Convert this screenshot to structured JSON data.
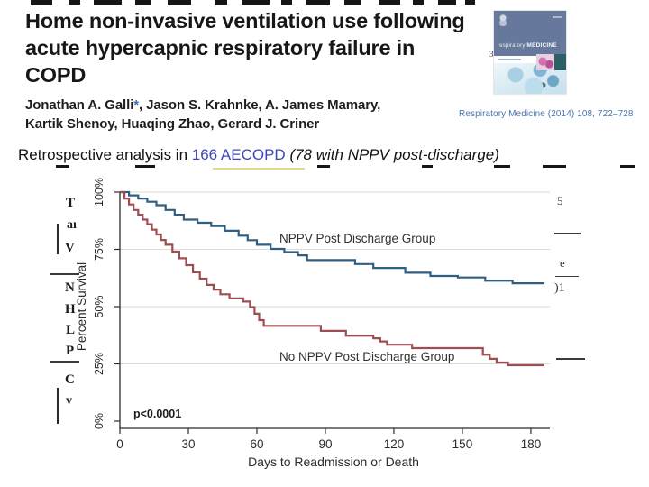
{
  "header": {
    "title_lines": [
      "Home non-invasive ventilation use following",
      "acute hypercapnic respiratory failure in",
      "COPD"
    ],
    "authors": {
      "line1_name": "Jonathan A. Galli",
      "asterisk": "*",
      "line1_rest": ", Jason S. Krahnke, A. James Mamary,",
      "line2": "Kartik Shenoy, Huaqing Zhao, Gerard J. Criner"
    },
    "citation": "Respiratory Medicine (2014) 108, 722–728"
  },
  "cover": {
    "title_small": "respiratory",
    "title_caps": "MEDICINE"
  },
  "summary": {
    "prefix": "Retrospective analysis in ",
    "count_highlight": "166 AECOPD",
    "detail_italic": " (78 with NPPV post-discharge)"
  },
  "artifacts": {
    "left_column_letters": [
      "T",
      "aı",
      "V",
      "N",
      "H",
      "L",
      "P",
      "C",
      "v"
    ],
    "right_column_top": "5",
    "right_column_mid": "e",
    "right_column_low": ")1",
    "cover_side_digit": "3"
  },
  "chart_data": {
    "type": "line",
    "style": "kaplan-meier-step",
    "title": "",
    "xlabel": "Days to Readmission or Death",
    "ylabel": "Percent Survival",
    "x_ticks": [
      0,
      30,
      60,
      90,
      120,
      150,
      180
    ],
    "y_ticks": [
      {
        "value": 0,
        "label": "0%"
      },
      {
        "value": 25,
        "label": "25%"
      },
      {
        "value": 50,
        "label": "50%"
      },
      {
        "value": 75,
        "label": "75%"
      },
      {
        "value": 100,
        "label": "100%"
      }
    ],
    "xlim": [
      0,
      186
    ],
    "ylim": [
      0,
      100
    ],
    "grid": "horizontal-only",
    "annotation": {
      "text": "p<0.0001"
    },
    "series": [
      {
        "name": "NPPV Post Discharge Group",
        "color": "#2f5f82",
        "points": [
          [
            0,
            100
          ],
          [
            4,
            98.6
          ],
          [
            8,
            97.2
          ],
          [
            12,
            95.8
          ],
          [
            16,
            94.3
          ],
          [
            20,
            92.2
          ],
          [
            24,
            90.1
          ],
          [
            28,
            88.0
          ],
          [
            34,
            86.6
          ],
          [
            40,
            85.2
          ],
          [
            46,
            83.1
          ],
          [
            52,
            81.0
          ],
          [
            56,
            79.0
          ],
          [
            60,
            77.0
          ],
          [
            66,
            75.2
          ],
          [
            72,
            73.8
          ],
          [
            78,
            72.4
          ],
          [
            82,
            70.3
          ],
          [
            103,
            68.6
          ],
          [
            111,
            66.9
          ],
          [
            125,
            64.8
          ],
          [
            136,
            63.4
          ],
          [
            148,
            62.7
          ],
          [
            160,
            61.3
          ],
          [
            172,
            60.2
          ],
          [
            186,
            60.2
          ]
        ]
      },
      {
        "name": "No NPPV Post Discharge Group",
        "color": "#9e4d53",
        "points": [
          [
            0,
            100
          ],
          [
            2,
            97.2
          ],
          [
            4,
            94.6
          ],
          [
            6,
            92.2
          ],
          [
            8,
            90.1
          ],
          [
            10,
            88.0
          ],
          [
            12,
            86.0
          ],
          [
            14,
            83.6
          ],
          [
            16,
            81.5
          ],
          [
            18,
            79.1
          ],
          [
            20,
            77.0
          ],
          [
            23,
            74.0
          ],
          [
            26,
            71.1
          ],
          [
            29,
            68.1
          ],
          [
            32,
            65.0
          ],
          [
            35,
            62.2
          ],
          [
            38,
            59.5
          ],
          [
            41,
            57.4
          ],
          [
            44,
            55.4
          ],
          [
            48,
            53.6
          ],
          [
            54,
            52.2
          ],
          [
            57,
            49.8
          ],
          [
            59,
            46.9
          ],
          [
            61,
            44.1
          ],
          [
            63,
            41.6
          ],
          [
            88,
            39.4
          ],
          [
            99,
            37.3
          ],
          [
            111,
            36.2
          ],
          [
            114,
            34.8
          ],
          [
            117,
            33.4
          ],
          [
            128,
            31.9
          ],
          [
            159,
            29.0
          ],
          [
            162,
            27.2
          ],
          [
            165,
            25.6
          ],
          [
            170,
            24.4
          ],
          [
            186,
            24.4
          ]
        ]
      }
    ]
  }
}
